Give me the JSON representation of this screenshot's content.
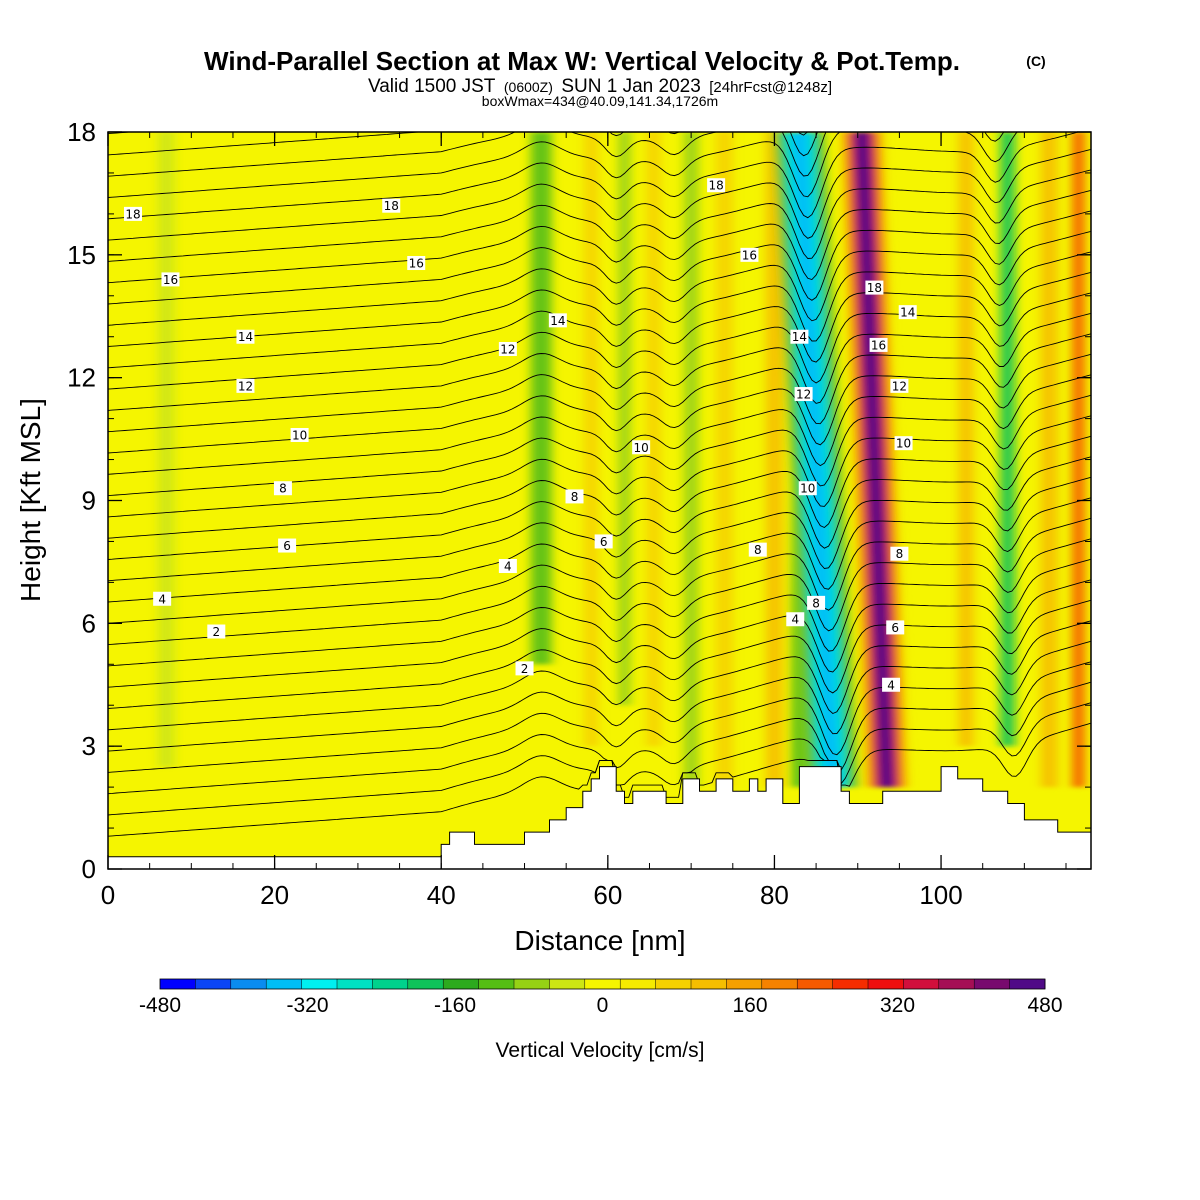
{
  "header": {
    "title": "Wind-Parallel Section at Max W: Vertical Velocity & Pot.Temp.",
    "copyright": "(C)",
    "valid_line": {
      "prefix": "Valid 1500 JST",
      "utc": "(0600Z)",
      "date": "SUN 1 Jan 2023",
      "forecast": "[24hrFcst@1248z]"
    },
    "boxwmax": "boxWmax=434@40.09,141.34,1726m"
  },
  "chart_data": {
    "type": "heatmap",
    "xlabel": "Distance [nm]",
    "ylabel": "Height [Kft MSL]",
    "xlim": [
      0,
      118
    ],
    "ylim": [
      0,
      18
    ],
    "x_ticks": [
      0,
      20,
      40,
      60,
      80,
      100
    ],
    "x_tick_labels": [
      "0",
      "20",
      "40",
      "60",
      "80",
      "100"
    ],
    "y_ticks": [
      0,
      3,
      6,
      9,
      12,
      15,
      18
    ],
    "y_tick_labels": [
      "0",
      "3",
      "6",
      "9",
      "12",
      "15",
      "18"
    ],
    "colorbar": {
      "label": "Vertical Velocity [cm/s]",
      "min": -480,
      "max": 480,
      "step": 40,
      "tick_values": [
        -480,
        -320,
        -160,
        0,
        160,
        320,
        480
      ],
      "tick_labels": [
        "-480",
        "-320",
        "-160",
        "0",
        "160",
        "320",
        "480"
      ],
      "colors": [
        "#0000ff",
        "#0b45f5",
        "#0a8cf0",
        "#00bef5",
        "#00f0f0",
        "#00e1c3",
        "#00d28c",
        "#0fc35a",
        "#2daa1e",
        "#55be14",
        "#96d214",
        "#cde614",
        "#f5f500",
        "#f5eb00",
        "#f5d200",
        "#f5be00",
        "#f5a000",
        "#f58200",
        "#f55a00",
        "#f52d00",
        "#ee0f0f",
        "#d20f3c",
        "#a50f55",
        "#780a6e",
        "#500a87"
      ]
    },
    "vertical_velocity_bands": [
      {
        "x": 7,
        "w": 2.0,
        "v": -60,
        "top": 18,
        "bottom": 2.5
      },
      {
        "x": 52,
        "w": 2.5,
        "v": -110,
        "top": 18,
        "bottom": 5
      },
      {
        "x": 58,
        "w": 1.7,
        "v": 80,
        "top": 18,
        "bottom": 3
      },
      {
        "x": 62,
        "w": 1.5,
        "v": -90,
        "top": 18,
        "bottom": 4
      },
      {
        "x": 65.5,
        "w": 1.7,
        "v": 90,
        "top": 18,
        "bottom": 3
      },
      {
        "x": 70,
        "w": 1.8,
        "v": -90,
        "top": 18,
        "bottom": 2
      },
      {
        "x": 74,
        "w": 2.0,
        "v": 60,
        "top": 18,
        "bottom": 2
      },
      {
        "x": 80,
        "w": 2.0,
        "v": 110,
        "top": 18,
        "bottom": 2
      },
      {
        "x": 83,
        "w": 2.0,
        "v": -140,
        "top": 18,
        "bottom": 2
      },
      {
        "x": 103,
        "w": 1.8,
        "v": 110,
        "top": 18,
        "bottom": 3
      },
      {
        "x": 108,
        "w": 1.8,
        "v": -200,
        "top": 18,
        "bottom": 3
      },
      {
        "x": 113,
        "w": 2.0,
        "v": 130,
        "top": 18,
        "bottom": 2
      },
      {
        "x": 116.5,
        "w": 1.5,
        "v": 240,
        "top": 18,
        "bottom": 2
      }
    ],
    "vertical_velocity_waves": [
      {
        "x_bottom": 87,
        "x_top": 83,
        "v": -370,
        "w": 2.0,
        "bottom": 2,
        "top": 18
      },
      {
        "x_bottom": 93.5,
        "x_top": 90.5,
        "v": 470,
        "w": 1.6,
        "bottom": 2,
        "top": 18
      }
    ],
    "theta_contours": {
      "labels": [
        {
          "x": 3,
          "y": 16.0,
          "text": "18"
        },
        {
          "x": 34,
          "y": 16.2,
          "text": "18"
        },
        {
          "x": 73,
          "y": 16.7,
          "text": "18"
        },
        {
          "x": 92,
          "y": 14.2,
          "text": "18"
        },
        {
          "x": 7.5,
          "y": 14.4,
          "text": "16"
        },
        {
          "x": 37,
          "y": 14.8,
          "text": "16"
        },
        {
          "x": 77,
          "y": 15.0,
          "text": "16"
        },
        {
          "x": 92.5,
          "y": 12.8,
          "text": "16"
        },
        {
          "x": 16.5,
          "y": 13.0,
          "text": "14"
        },
        {
          "x": 54,
          "y": 13.4,
          "text": "14"
        },
        {
          "x": 83,
          "y": 13.0,
          "text": "14"
        },
        {
          "x": 96,
          "y": 13.6,
          "text": "14"
        },
        {
          "x": 16.5,
          "y": 11.8,
          "text": "12"
        },
        {
          "x": 48,
          "y": 12.7,
          "text": "12"
        },
        {
          "x": 83.5,
          "y": 11.6,
          "text": "12"
        },
        {
          "x": 95,
          "y": 11.8,
          "text": "12"
        },
        {
          "x": 23,
          "y": 10.6,
          "text": "10"
        },
        {
          "x": 64,
          "y": 10.3,
          "text": "10"
        },
        {
          "x": 84,
          "y": 9.3,
          "text": "10"
        },
        {
          "x": 95.5,
          "y": 10.4,
          "text": "10"
        },
        {
          "x": 21,
          "y": 9.3,
          "text": "8"
        },
        {
          "x": 56,
          "y": 9.1,
          "text": "8"
        },
        {
          "x": 78,
          "y": 7.8,
          "text": "8"
        },
        {
          "x": 85,
          "y": 6.5,
          "text": "8"
        },
        {
          "x": 95,
          "y": 7.7,
          "text": "8"
        },
        {
          "x": 21.5,
          "y": 7.9,
          "text": "6"
        },
        {
          "x": 59.5,
          "y": 8.0,
          "text": "6"
        },
        {
          "x": 94.5,
          "y": 5.9,
          "text": "6"
        },
        {
          "x": 6.5,
          "y": 6.6,
          "text": "4"
        },
        {
          "x": 48,
          "y": 7.4,
          "text": "4"
        },
        {
          "x": 82.5,
          "y": 6.1,
          "text": "4"
        },
        {
          "x": 94,
          "y": 4.5,
          "text": "4"
        },
        {
          "x": 13,
          "y": 5.8,
          "text": "2"
        },
        {
          "x": 50,
          "y": 4.9,
          "text": "2"
        }
      ]
    },
    "terrain": [
      [
        0,
        0.3
      ],
      [
        40,
        0.3
      ],
      [
        40,
        0.6
      ],
      [
        41,
        0.6
      ],
      [
        41,
        0.9
      ],
      [
        44,
        0.9
      ],
      [
        44,
        0.6
      ],
      [
        50,
        0.6
      ],
      [
        50,
        0.9
      ],
      [
        53,
        0.9
      ],
      [
        53,
        1.2
      ],
      [
        55,
        1.2
      ],
      [
        55,
        1.5
      ],
      [
        57,
        1.5
      ],
      [
        57,
        1.9
      ],
      [
        58,
        1.9
      ],
      [
        58,
        2.2
      ],
      [
        59,
        2.2
      ],
      [
        59,
        2.5
      ],
      [
        61,
        2.5
      ],
      [
        61,
        1.9
      ],
      [
        62,
        1.9
      ],
      [
        62,
        1.6
      ],
      [
        63,
        1.6
      ],
      [
        63,
        1.9
      ],
      [
        67,
        1.9
      ],
      [
        67,
        1.6
      ],
      [
        69,
        1.6
      ],
      [
        69,
        2.2
      ],
      [
        71,
        2.2
      ],
      [
        71,
        1.9
      ],
      [
        73,
        1.9
      ],
      [
        73,
        2.2
      ],
      [
        75,
        2.2
      ],
      [
        75,
        1.9
      ],
      [
        77,
        1.9
      ],
      [
        77,
        2.2
      ],
      [
        78,
        2.2
      ],
      [
        78,
        1.9
      ],
      [
        79,
        1.9
      ],
      [
        79,
        2.2
      ],
      [
        81,
        2.2
      ],
      [
        81,
        1.6
      ],
      [
        83,
        1.6
      ],
      [
        83,
        2.5
      ],
      [
        88,
        2.5
      ],
      [
        88,
        1.9
      ],
      [
        89,
        1.9
      ],
      [
        89,
        1.6
      ],
      [
        93,
        1.6
      ],
      [
        93,
        1.9
      ],
      [
        100,
        1.9
      ],
      [
        100,
        2.5
      ],
      [
        102,
        2.5
      ],
      [
        102,
        2.2
      ],
      [
        105,
        2.2
      ],
      [
        105,
        1.9
      ],
      [
        108,
        1.9
      ],
      [
        108,
        1.6
      ],
      [
        110,
        1.6
      ],
      [
        110,
        1.2
      ],
      [
        114,
        1.2
      ],
      [
        114,
        0.9
      ],
      [
        118,
        0.9
      ],
      [
        118,
        0
      ]
    ]
  }
}
